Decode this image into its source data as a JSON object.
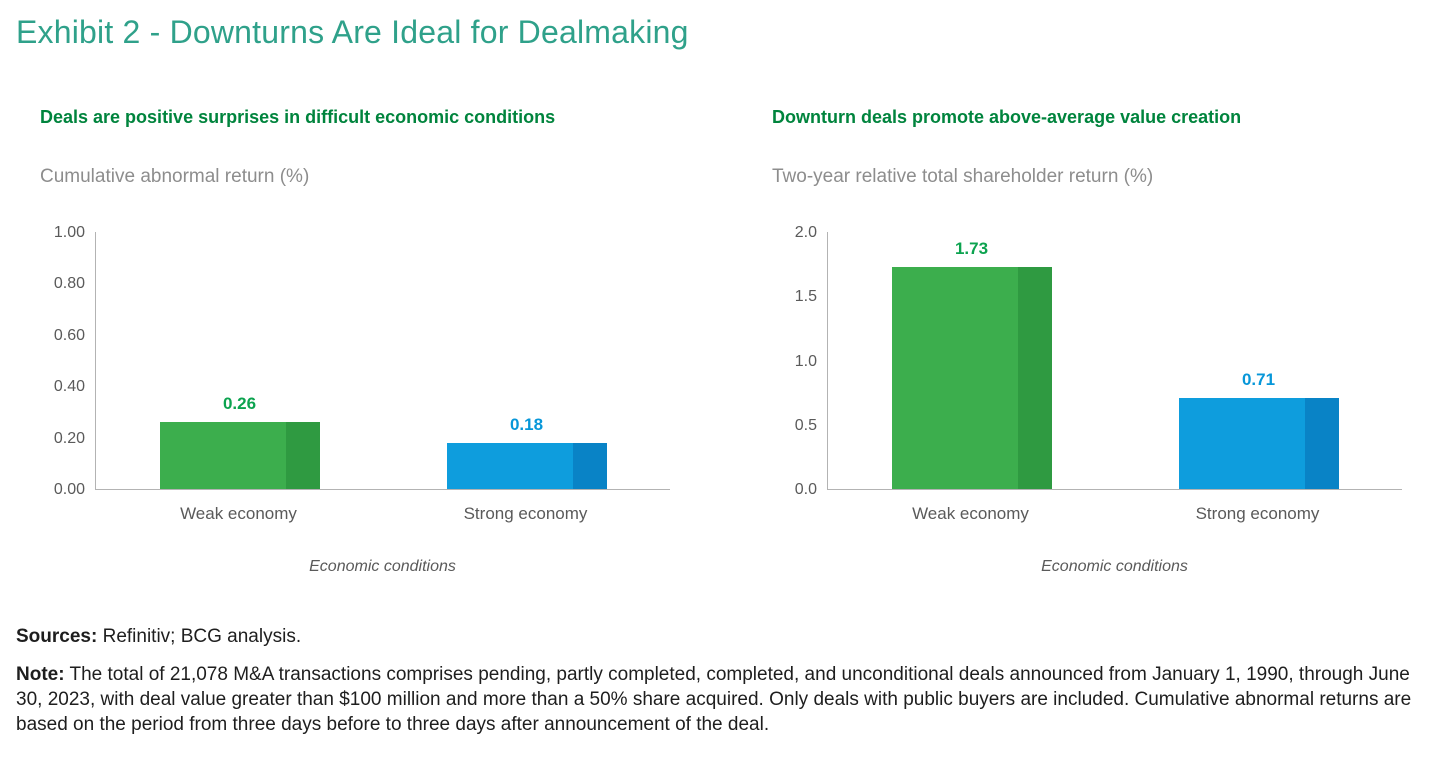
{
  "title": "Exhibit 2 - Downturns Are Ideal for Dealmaking",
  "colors": {
    "title_teal": "#2fa18a",
    "heading_green": "#00843d",
    "axis_gray": "#8d8d8d",
    "tick_gray": "#5a5a5a",
    "bar_green": "#3cae4d",
    "bar_green_shade": "#2f9a41",
    "green_value_label": "#0ca34f",
    "bar_blue": "#0e9ddd",
    "bar_blue_shade": "#0983c6",
    "blue_value_label": "#0797d9",
    "axis_line": "#b3b3b3"
  },
  "chart_data": [
    {
      "type": "bar",
      "title": "Deals are positive surprises in difficult economic conditions",
      "ylabel": "Cumulative abnormal return (%)",
      "xlabel": "Economic conditions",
      "categories": [
        "Weak economy",
        "Strong economy"
      ],
      "values": [
        0.26,
        0.18
      ],
      "ylim": [
        0,
        1.0
      ],
      "yticks": [
        "1.00",
        "0.80",
        "0.60",
        "0.40",
        "0.20",
        "0.00"
      ],
      "grid": false,
      "legend": "none",
      "bars": [
        {
          "category": "Weak economy",
          "value": 0.26,
          "label": "0.26",
          "fill": "#3cae4d",
          "edge": "#2f9a41",
          "label_color": "#0ca34f"
        },
        {
          "category": "Strong economy",
          "value": 0.18,
          "label": "0.18",
          "fill": "#0e9ddd",
          "edge": "#0983c6",
          "label_color": "#0797d9"
        }
      ]
    },
    {
      "type": "bar",
      "title": "Downturn deals promote above-average value creation",
      "ylabel": "Two-year relative total shareholder return (%)",
      "xlabel": "Economic conditions",
      "categories": [
        "Weak economy",
        "Strong economy"
      ],
      "values": [
        1.73,
        0.71
      ],
      "ylim": [
        0,
        2.0
      ],
      "yticks": [
        "2.0",
        "1.5",
        "1.0",
        "0.5",
        "0.0"
      ],
      "grid": false,
      "legend": "none",
      "bars": [
        {
          "category": "Weak economy",
          "value": 1.73,
          "label": "1.73",
          "fill": "#3cae4d",
          "edge": "#2f9a41",
          "label_color": "#0ca34f"
        },
        {
          "category": "Strong economy",
          "value": 0.71,
          "label": "0.71",
          "fill": "#0e9ddd",
          "edge": "#0983c6",
          "label_color": "#0797d9"
        }
      ]
    }
  ],
  "footer": {
    "sources_label": "Sources:",
    "sources_text": " Refinitiv; BCG analysis.",
    "note_label": "Note:",
    "note_text": " The total of 21,078 M&A transactions comprises pending, partly completed, completed, and unconditional deals announced from January 1, 1990, through June 30, 2023, with deal value greater than $100 million and more than a 50% share acquired. Only deals with public buyers are included. Cumulative abnormal returns are based on the period from three days before to three days after announcement of the deal."
  }
}
